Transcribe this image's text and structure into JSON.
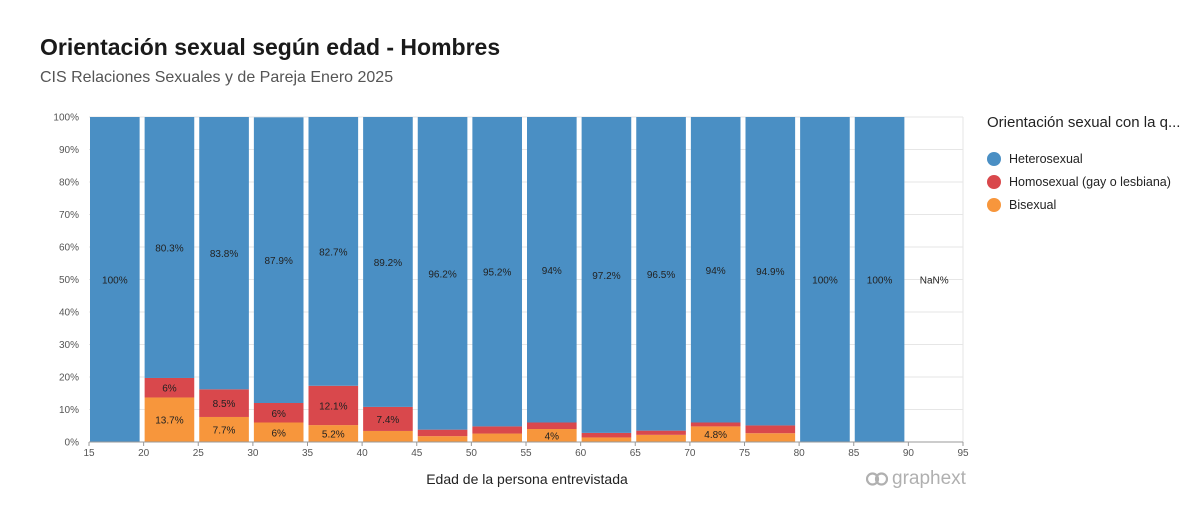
{
  "header": {
    "title": "Orientación sexual según edad - Hombres",
    "subtitle": "CIS Relaciones Sexuales y de Pareja Enero 2025"
  },
  "legend": {
    "title": "Orientación sexual con la q...",
    "items": [
      {
        "label": "Heterosexual",
        "color": "#4a8fc4"
      },
      {
        "label": "Homosexual (gay o lesbiana)",
        "color": "#d9484c"
      },
      {
        "label": "Bisexual",
        "color": "#f7963c"
      }
    ]
  },
  "brand": {
    "name": "graphext"
  },
  "chart_data": {
    "type": "bar",
    "stacked": true,
    "normalized": true,
    "xlabel": "Edad de la persona entrevistada",
    "ylabel": "",
    "x_ticks": [
      15,
      20,
      25,
      30,
      35,
      40,
      45,
      50,
      55,
      60,
      65,
      70,
      75,
      80,
      85,
      90,
      95
    ],
    "y_ticks": [
      "0%",
      "10%",
      "20%",
      "30%",
      "40%",
      "50%",
      "60%",
      "70%",
      "80%",
      "90%",
      "100%"
    ],
    "ylim": [
      0,
      100
    ],
    "grid": true,
    "legend_position": "right",
    "bins": [
      {
        "from": 15,
        "to": 20,
        "hetero": 100,
        "homo": 0,
        "bi": 0,
        "labels": {
          "hetero": "100%"
        }
      },
      {
        "from": 20,
        "to": 25,
        "hetero": 80.3,
        "homo": 6,
        "bi": 13.7,
        "labels": {
          "hetero": "80.3%",
          "homo": "6%",
          "bi": "13.7%"
        }
      },
      {
        "from": 25,
        "to": 30,
        "hetero": 83.8,
        "homo": 8.5,
        "bi": 7.7,
        "labels": {
          "hetero": "83.8%",
          "homo": "8.5%",
          "bi": "7.7%"
        }
      },
      {
        "from": 30,
        "to": 35,
        "hetero": 87.9,
        "homo": 6,
        "bi": 6,
        "labels": {
          "hetero": "87.9%",
          "homo": "6%",
          "bi": "6%"
        }
      },
      {
        "from": 35,
        "to": 40,
        "hetero": 82.7,
        "homo": 12.1,
        "bi": 5.2,
        "labels": {
          "hetero": "82.7%",
          "homo": "12.1%",
          "bi": "5.2%"
        }
      },
      {
        "from": 40,
        "to": 45,
        "hetero": 89.2,
        "homo": 7.4,
        "bi": 3.4,
        "labels": {
          "hetero": "89.2%",
          "homo": "7.4%"
        }
      },
      {
        "from": 45,
        "to": 50,
        "hetero": 96.2,
        "homo": 2,
        "bi": 1.8,
        "labels": {
          "hetero": "96.2%"
        }
      },
      {
        "from": 50,
        "to": 55,
        "hetero": 95.2,
        "homo": 2.2,
        "bi": 2.6,
        "labels": {
          "hetero": "95.2%"
        }
      },
      {
        "from": 55,
        "to": 60,
        "hetero": 94,
        "homo": 2,
        "bi": 4,
        "labels": {
          "hetero": "94%",
          "bi": "4%"
        }
      },
      {
        "from": 60,
        "to": 65,
        "hetero": 97.2,
        "homo": 1.4,
        "bi": 1.4,
        "labels": {
          "hetero": "97.2%"
        }
      },
      {
        "from": 65,
        "to": 70,
        "hetero": 96.5,
        "homo": 1.3,
        "bi": 2.2,
        "labels": {
          "hetero": "96.5%"
        }
      },
      {
        "from": 70,
        "to": 75,
        "hetero": 94,
        "homo": 1.2,
        "bi": 4.8,
        "labels": {
          "hetero": "94%",
          "bi": "4.8%"
        }
      },
      {
        "from": 75,
        "to": 80,
        "hetero": 94.9,
        "homo": 2.4,
        "bi": 2.7,
        "labels": {
          "hetero": "94.9%"
        }
      },
      {
        "from": 80,
        "to": 85,
        "hetero": 100,
        "homo": 0,
        "bi": 0,
        "labels": {
          "hetero": "100%"
        }
      },
      {
        "from": 85,
        "to": 90,
        "hetero": 100,
        "homo": 0,
        "bi": 0,
        "labels": {
          "hetero": "100%"
        }
      },
      {
        "from": 90,
        "to": 95,
        "hetero": null,
        "homo": null,
        "bi": null,
        "labels": {
          "hetero": "NaN%"
        }
      }
    ]
  }
}
